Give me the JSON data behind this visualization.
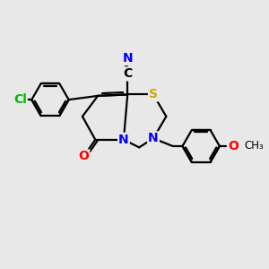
{
  "bg_color": "#e8e8e8",
  "atom_colors": {
    "C": "#000000",
    "N": "#0000ff",
    "O": "#ff0000",
    "S": "#ccaa00",
    "Cl": "#00bb00"
  },
  "bond_color": "#000000",
  "bond_width": 1.6,
  "font_size_atoms": 10,
  "font_size_small": 8.5
}
